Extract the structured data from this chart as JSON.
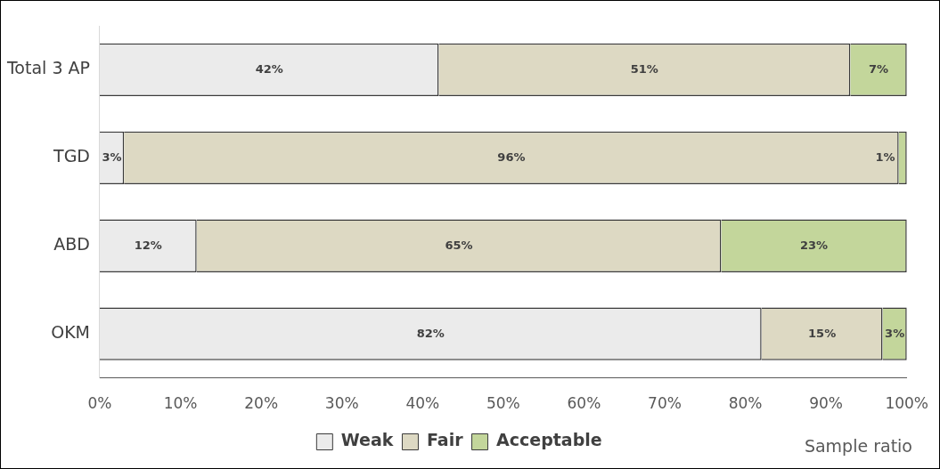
{
  "chart_data": {
    "type": "bar",
    "orientation": "horizontal",
    "stacked": true,
    "categories": [
      "Total 3 AP",
      "TGD",
      "ABD",
      "OKM"
    ],
    "series": [
      {
        "name": "Weak",
        "color": "#ebebeb",
        "values": [
          42,
          3,
          12,
          82
        ],
        "value_labels": [
          "42%",
          "3%",
          "12%",
          "82%"
        ]
      },
      {
        "name": "Fair",
        "color": "#ddd9c3",
        "values": [
          51,
          96,
          65,
          15
        ],
        "value_labels": [
          "51%",
          "96%",
          "65%",
          "15%"
        ]
      },
      {
        "name": "Acceptable",
        "color": "#c3d69b",
        "values": [
          7,
          1,
          23,
          3
        ],
        "value_labels": [
          "7%",
          "1%",
          "23%",
          "3%"
        ]
      }
    ],
    "xlim": [
      0,
      100
    ],
    "xticks": [
      {
        "value": 0,
        "label": "0%"
      },
      {
        "value": 10,
        "label": "10%"
      },
      {
        "value": 20,
        "label": "20%"
      },
      {
        "value": 30,
        "label": "30%"
      },
      {
        "value": 40,
        "label": "40%"
      },
      {
        "value": 50,
        "label": "50%"
      },
      {
        "value": 60,
        "label": "60%"
      },
      {
        "value": 70,
        "label": "70%"
      },
      {
        "value": 80,
        "label": "80%"
      },
      {
        "value": 90,
        "label": "90%"
      },
      {
        "value": 100,
        "label": "100%"
      }
    ],
    "xlabel": "Sample ratio",
    "legend": "bottom",
    "grid": false
  }
}
